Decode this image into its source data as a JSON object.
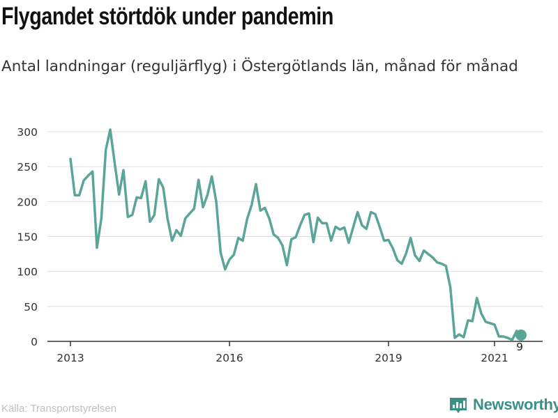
{
  "header": {
    "title": "Flygandet störtdök under pandemin",
    "subtitle": "Antal landningar (reguljärflyg) i Östergötlands län, månad för månad"
  },
  "footer": {
    "source": "Källa: Transportstyrelsen",
    "brand": "Newsworthy"
  },
  "colors": {
    "line": "#5ba598",
    "grid": "#dddddd",
    "axis": "#333333",
    "text": "#333333",
    "brand": "#3a8f86"
  },
  "chart_data": {
    "type": "line",
    "title": "Flygandet störtdök under pandemin",
    "subtitle": "Antal landningar (reguljärflyg) i Östergötlands län, månad för månad",
    "xlabel": "",
    "ylabel": "",
    "ylim": [
      0,
      300
    ],
    "yticks": [
      0,
      50,
      100,
      150,
      200,
      250,
      300
    ],
    "xlim": [
      "2013-01",
      "2021-07"
    ],
    "xticks": [
      {
        "x": "2013-01",
        "label": "2013"
      },
      {
        "x": "2016-01",
        "label": "2016"
      },
      {
        "x": "2019-01",
        "label": "2019"
      },
      {
        "x": "2021-01",
        "label": "2021"
      }
    ],
    "grid": true,
    "series": [
      {
        "x": [
          "2013-01",
          "2013-02",
          "2013-03",
          "2013-04",
          "2013-05",
          "2013-06",
          "2013-07",
          "2013-08",
          "2013-09",
          "2013-10",
          "2013-11",
          "2013-12",
          "2014-01",
          "2014-02",
          "2014-03",
          "2014-04",
          "2014-05",
          "2014-06",
          "2014-07",
          "2014-08",
          "2014-09",
          "2014-10",
          "2014-11",
          "2014-12",
          "2015-01",
          "2015-02",
          "2015-03",
          "2015-04",
          "2015-05",
          "2015-06",
          "2015-07",
          "2015-08",
          "2015-09",
          "2015-10",
          "2015-11",
          "2015-12",
          "2016-01",
          "2016-02",
          "2016-03",
          "2016-04",
          "2016-05",
          "2016-06",
          "2016-07",
          "2016-08",
          "2016-09",
          "2016-10",
          "2016-11",
          "2016-12",
          "2017-01",
          "2017-02",
          "2017-03",
          "2017-04",
          "2017-05",
          "2017-06",
          "2017-07",
          "2017-08",
          "2017-09",
          "2017-10",
          "2017-11",
          "2017-12",
          "2018-01",
          "2018-02",
          "2018-03",
          "2018-04",
          "2018-05",
          "2018-06",
          "2018-07",
          "2018-08",
          "2018-09",
          "2018-10",
          "2018-11",
          "2018-12",
          "2019-01",
          "2019-02",
          "2019-03",
          "2019-04",
          "2019-05",
          "2019-06",
          "2019-07",
          "2019-08",
          "2019-09",
          "2019-10",
          "2019-11",
          "2019-12",
          "2020-01",
          "2020-02",
          "2020-03",
          "2020-04",
          "2020-05",
          "2020-06",
          "2020-07",
          "2020-08",
          "2020-09",
          "2020-10",
          "2020-11",
          "2020-12",
          "2021-01",
          "2021-02",
          "2021-03",
          "2021-04",
          "2021-05",
          "2021-06",
          "2021-07"
        ],
        "values": [
          261,
          209,
          209,
          230,
          237,
          243,
          134,
          176,
          274,
          303,
          256,
          210,
          245,
          178,
          181,
          206,
          205,
          229,
          171,
          181,
          232,
          220,
          175,
          144,
          159,
          151,
          176,
          183,
          190,
          231,
          192,
          209,
          236,
          200,
          127,
          103,
          117,
          124,
          148,
          144,
          175,
          195,
          225,
          187,
          191,
          176,
          153,
          148,
          137,
          109,
          146,
          149,
          166,
          181,
          183,
          142,
          177,
          169,
          169,
          144,
          164,
          160,
          163,
          141,
          163,
          185,
          166,
          161,
          185,
          182,
          164,
          144,
          145,
          133,
          116,
          111,
          126,
          148,
          123,
          115,
          130,
          125,
          120,
          113,
          111,
          108,
          77,
          5,
          10,
          6,
          30,
          29,
          62,
          40,
          28,
          26,
          24,
          7,
          7,
          5,
          2,
          15,
          9
        ]
      }
    ],
    "annotations": [
      {
        "x": "2021-07",
        "y": 9,
        "label": "9"
      }
    ]
  }
}
